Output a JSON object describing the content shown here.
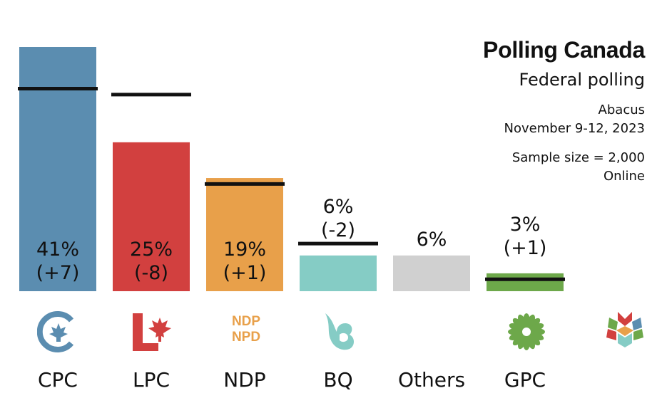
{
  "header": {
    "title": "Polling Canada",
    "subtitle": "Federal polling",
    "pollster": "Abacus",
    "dates": "November 9-12, 2023",
    "sample": "Sample size = 2,000",
    "method": "Online"
  },
  "logos": {
    "ndp_line1": "NDP",
    "ndp_line2": "NPD"
  },
  "chart_data": {
    "type": "bar",
    "categories": [
      "CPC",
      "LPC",
      "NDP",
      "BQ",
      "Others",
      "GPC"
    ],
    "values": [
      41,
      25,
      19,
      6,
      6,
      3
    ],
    "previous": [
      34,
      33,
      18,
      8,
      null,
      2
    ],
    "labels": [
      "41%",
      "25%",
      "19%",
      "6%",
      "6%",
      "3%"
    ],
    "changes": [
      "(+7)",
      "(-8)",
      "(+1)",
      "(-2)",
      "",
      "(+1)"
    ],
    "colors": [
      "#5B8DB0",
      "#D2403F",
      "#E8A04A",
      "#85CCC5",
      "#D0D0D0",
      "#6DA84A"
    ],
    "ylim": [
      0,
      41
    ]
  }
}
